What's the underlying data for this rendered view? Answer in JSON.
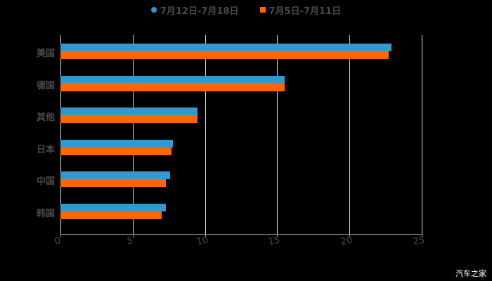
{
  "chart_data": {
    "type": "bar",
    "orientation": "horizontal",
    "title": "",
    "xlabel": "",
    "ylabel": "",
    "categories": [
      "美国",
      "德国",
      "其他",
      "日本",
      "中国",
      "韩国"
    ],
    "series": [
      {
        "name": "7月12日-7月18日",
        "color": "#3399CC",
        "values": [
          22.9,
          15.5,
          9.5,
          7.8,
          7.6,
          7.3
        ]
      },
      {
        "name": "7月5日-7月11日",
        "color": "#FF6600",
        "values": [
          22.7,
          15.5,
          9.5,
          7.7,
          7.3,
          7.0
        ]
      }
    ],
    "xlim": [
      0,
      25
    ],
    "xticks": [
      "0",
      "5",
      "10",
      "15",
      "20",
      "25"
    ],
    "grid": true,
    "legend_position": "top"
  },
  "legend": {
    "items": [
      {
        "label": "7月12日-7月18日",
        "color": "#3399CC",
        "marker": "circle"
      },
      {
        "label": "7月5日-7月11日",
        "color": "#FF6600",
        "marker": "square"
      }
    ]
  },
  "watermark": "汽车之家"
}
